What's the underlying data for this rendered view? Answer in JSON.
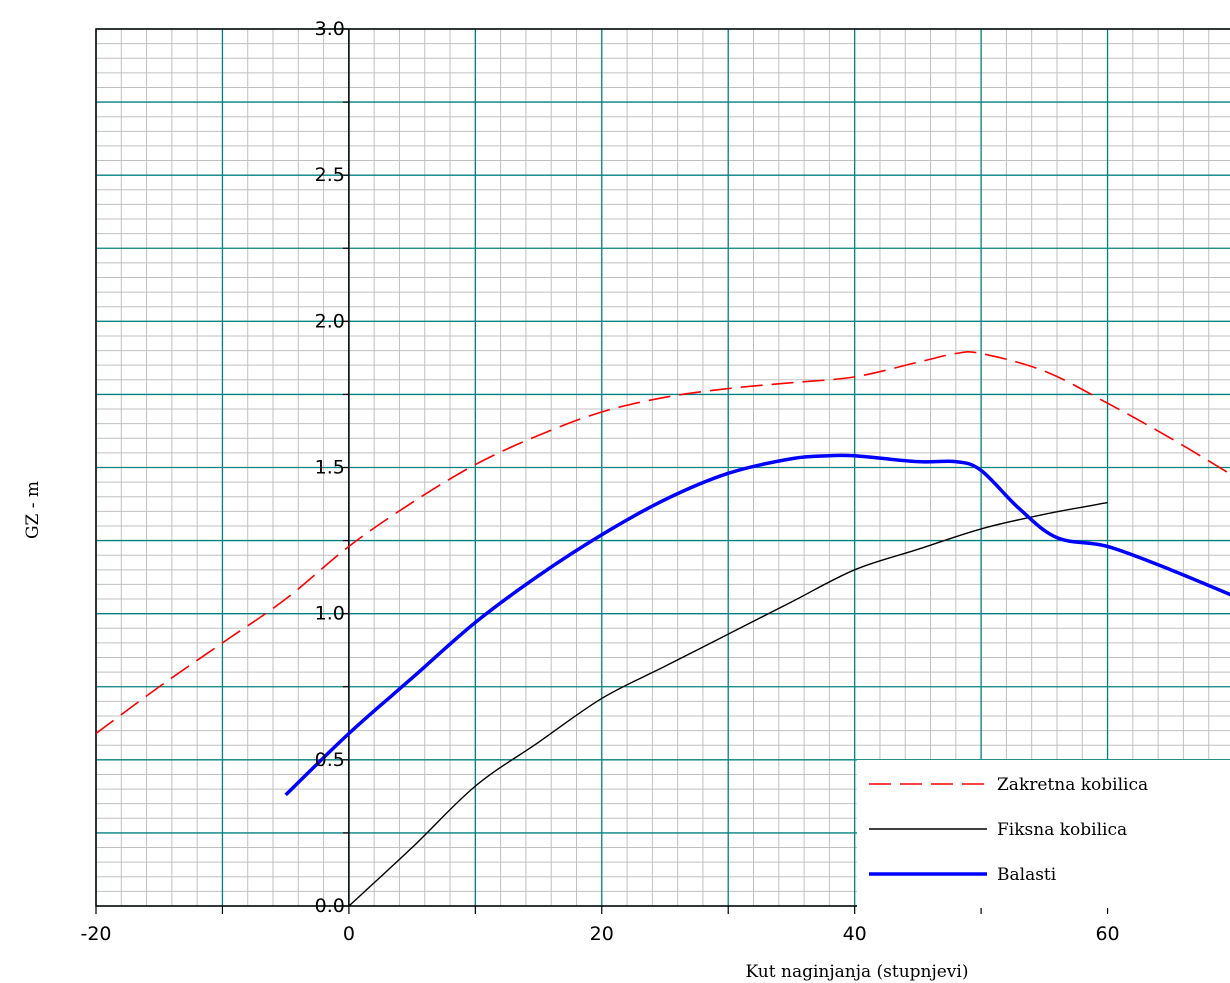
{
  "chart_data": {
    "type": "line",
    "title": "",
    "xlabel": "Kut naginjanja (stupnjevi)",
    "ylabel": "GZ - m",
    "xlim": [
      -20,
      70
    ],
    "ylim": [
      0.0,
      3.0
    ],
    "x_ticks": [
      -20,
      0,
      20,
      40,
      60
    ],
    "x_tick_labels": [
      "-20",
      "0",
      "20",
      "40",
      "60"
    ],
    "y_ticks": [
      0.0,
      0.5,
      1.0,
      1.5,
      2.0,
      2.5,
      3.0
    ],
    "y_tick_labels": [
      "0.0",
      "0.5",
      "1.0",
      "1.5",
      "2.0",
      "2.5",
      "3.0"
    ],
    "grid": true,
    "legend_position": "bottom-right",
    "series": [
      {
        "name": "Zakretna kobilica",
        "style": "dashed",
        "color": "#ff0000",
        "x": [
          -20,
          -15,
          -10,
          -5,
          0,
          5,
          10,
          15,
          20,
          25,
          30,
          35,
          40,
          45,
          48,
          50,
          55,
          60,
          65,
          70
        ],
        "y": [
          0.59,
          0.75,
          0.9,
          1.05,
          1.23,
          1.38,
          1.51,
          1.61,
          1.69,
          1.74,
          1.77,
          1.79,
          1.81,
          1.86,
          1.89,
          1.89,
          1.83,
          1.72,
          1.6,
          1.47
        ]
      },
      {
        "name": "Fiksna kobilica",
        "style": "solid",
        "color": "#000000",
        "x": [
          0,
          5,
          10,
          15,
          20,
          25,
          30,
          35,
          40,
          45,
          50,
          55,
          60
        ],
        "y": [
          0.0,
          0.2,
          0.41,
          0.56,
          0.71,
          0.82,
          0.93,
          1.04,
          1.15,
          1.22,
          1.29,
          1.34,
          1.38
        ]
      },
      {
        "name": "Balasti",
        "style": "solid-thick",
        "color": "#0000ff",
        "x": [
          -5,
          0,
          5,
          10,
          15,
          20,
          25,
          30,
          35,
          38,
          40,
          45,
          48,
          50,
          53,
          56,
          60,
          65,
          70
        ],
        "y": [
          0.38,
          0.59,
          0.78,
          0.97,
          1.13,
          1.27,
          1.39,
          1.48,
          1.53,
          1.54,
          1.54,
          1.52,
          1.52,
          1.49,
          1.36,
          1.26,
          1.23,
          1.15,
          1.06
        ]
      }
    ]
  },
  "colors": {
    "major_grid": "#008080",
    "minor_grid": "#c0c0c0",
    "background": "#ffffff",
    "axes": "#000000"
  }
}
